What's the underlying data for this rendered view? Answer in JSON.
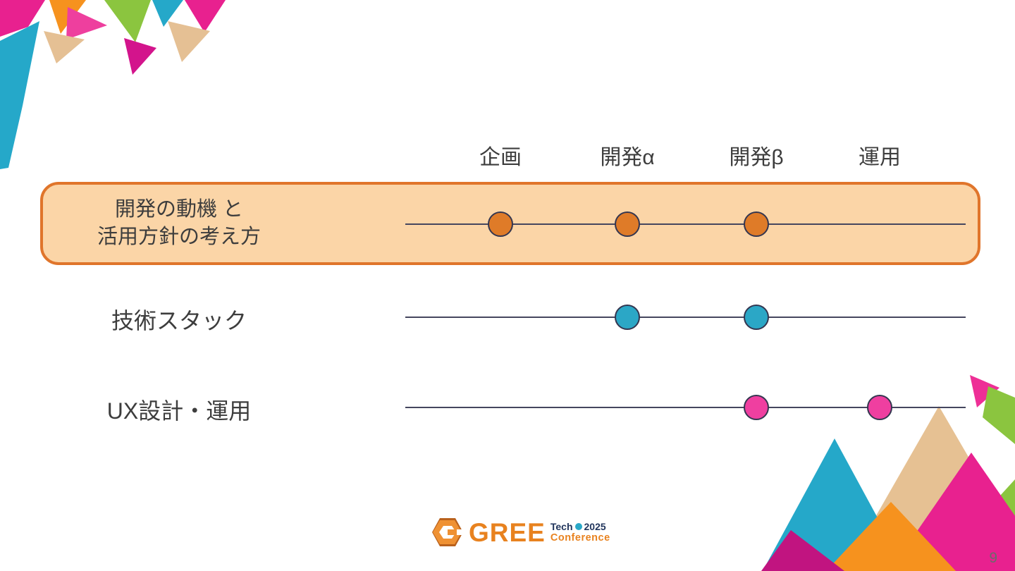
{
  "timeline": {
    "columns": [
      "企画",
      "開発α",
      "開発β",
      "運用"
    ],
    "rows": [
      {
        "label_lines": [
          "開発の動機 と",
          "活用方針の考え方"
        ],
        "highlighted": true,
        "dot_color": "#df7b28",
        "dot_columns": [
          0,
          1,
          2
        ]
      },
      {
        "label_lines": [
          "技術スタック"
        ],
        "highlighted": false,
        "dot_color": "#2ba7c6",
        "dot_columns": [
          1,
          2
        ]
      },
      {
        "label_lines": [
          "UX設計・運用"
        ],
        "highlighted": false,
        "dot_color": "#ef3fa0",
        "dot_columns": [
          2,
          3
        ]
      }
    ],
    "highlight_box": {
      "fill": "#fbd5a7",
      "border": "#e0752b"
    }
  },
  "footer": {
    "logo": {
      "brand": "GREE",
      "event_line1": "Tech",
      "year": "2025",
      "event_line2": "Conference"
    },
    "page_number": "9"
  }
}
